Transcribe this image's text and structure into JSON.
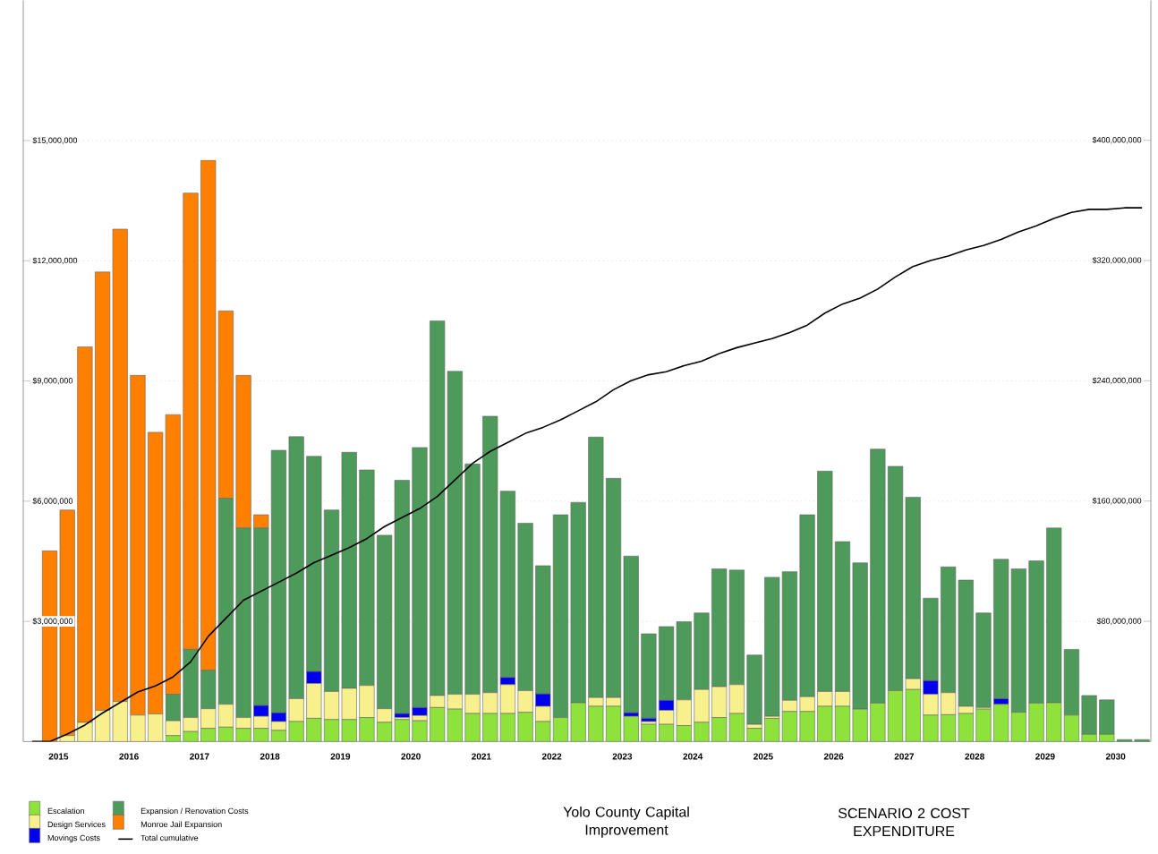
{
  "chart_data": {
    "type": "bar",
    "stacked": true,
    "title": "Yolo County Capital Improvement",
    "subtitle": "SCENARIO 2 COST EXPENDITURE",
    "x": [
      2015.125,
      2015.375,
      2015.625,
      2015.875,
      2016.125,
      2016.375,
      2016.625,
      2016.875,
      2017.125,
      2017.375,
      2017.625,
      2017.875,
      2018.125,
      2018.375,
      2018.625,
      2018.875,
      2019.125,
      2019.375,
      2019.625,
      2019.875,
      2020.125,
      2020.375,
      2020.625,
      2020.875,
      2021.125,
      2021.375,
      2021.625,
      2021.875,
      2022.125,
      2022.375,
      2022.625,
      2022.875,
      2023.125,
      2023.375,
      2023.625,
      2023.875,
      2024.125,
      2024.375,
      2024.625,
      2024.875,
      2025.125,
      2025.375,
      2025.625,
      2025.875,
      2026.125,
      2026.375,
      2026.625,
      2026.875,
      2027.125,
      2027.375,
      2027.625,
      2027.875,
      2028.125,
      2028.375,
      2028.625,
      2028.875,
      2029.125,
      2029.375,
      2029.625,
      2029.875,
      2030.125,
      2030.375,
      2030.625,
      2030.875
    ],
    "series": [
      {
        "name": "Escalation",
        "color": "#8fe13b",
        "values": [
          0,
          0,
          0,
          0,
          0,
          0,
          0,
          0,
          150000.0,
          250000.0,
          330000.0,
          360000.0,
          330000.0,
          330000.0,
          280000.0,
          500000.0,
          580000.0,
          550000.0,
          550000.0,
          600000.0,
          480000.0,
          550000.0,
          520000.0,
          850000.0,
          810000.0,
          700000.0,
          700000.0,
          700000.0,
          730000.0,
          500000.0,
          600000.0,
          970000.0,
          880000.0,
          880000.0,
          630000.0,
          430000.0,
          430000.0,
          400000.0,
          480000.0,
          600000.0,
          700000.0,
          330000.0,
          580000.0,
          750000.0,
          750000.0,
          880000.0,
          880000.0,
          810000.0,
          960000.0,
          1270000.0,
          1300000.0,
          660000.0,
          670000.0,
          700000.0,
          810000.0,
          930000.0,
          730000.0,
          960000.0,
          970000.0,
          660000.0,
          180000.0,
          180000.0,
          0,
          0
        ]
      },
      {
        "name": "Design Services",
        "color": "#f8f08c",
        "values": [
          0,
          0,
          150000.0,
          480000.0,
          780000.0,
          1000000.0,
          660000.0,
          690000.0,
          370000.0,
          350000.0,
          490000.0,
          570000.0,
          270000.0,
          300000.0,
          220000.0,
          570000.0,
          870000.0,
          700000.0,
          780000.0,
          800000.0,
          340000.0,
          50000.0,
          130000.0,
          300000.0,
          370000.0,
          480000.0,
          520000.0,
          720000.0,
          540000.0,
          380000.0,
          0,
          0,
          220000.0,
          220000.0,
          0,
          70000.0,
          350000.0,
          640000.0,
          820000.0,
          770000.0,
          720000.0,
          100000.0,
          50000.0,
          280000.0,
          370000.0,
          370000.0,
          370000.0,
          0,
          0,
          0,
          270000.0,
          520000.0,
          550000.0,
          180000.0,
          40000.0,
          0,
          0,
          0,
          0,
          0,
          0,
          0,
          0,
          0
        ]
      },
      {
        "name": "Movings Costs",
        "color": "#0000ee",
        "values": [
          0,
          0,
          0,
          0,
          0,
          0,
          0,
          0,
          0,
          0,
          0,
          0,
          0,
          270000.0,
          220000.0,
          0,
          300000.0,
          0,
          0,
          0,
          0,
          100000.0,
          200000.0,
          0,
          0,
          0,
          0,
          180000.0,
          0,
          310000.0,
          0,
          0,
          0,
          0,
          90000.0,
          80000.0,
          250000.0,
          0,
          0,
          0,
          0,
          0,
          0,
          0,
          0,
          0,
          0,
          0,
          0,
          0,
          0,
          340000.0,
          0,
          0,
          0,
          140000.0,
          0,
          0,
          0,
          0,
          0,
          0,
          0,
          0
        ]
      },
      {
        "name": "Expansion / Renovation Costs",
        "color": "#4e9a5a",
        "values": [
          0,
          0,
          0,
          0,
          0,
          0,
          0,
          0,
          660000.0,
          1700000.0,
          960000.0,
          5140000.0,
          4730000.0,
          4430000.0,
          6550000.0,
          6540000.0,
          5370000.0,
          4530000.0,
          5890000.0,
          5380000.0,
          4330000.0,
          5820000.0,
          6490000.0,
          9350000.0,
          8060000.0,
          5750000.0,
          6900000.0,
          4650000.0,
          4180000.0,
          3200000.0,
          5060000.0,
          5000000.0,
          6500000.0,
          5470000.0,
          3910000.0,
          2110000.0,
          1840000.0,
          1950000.0,
          1910000.0,
          2940000.0,
          2860000.0,
          1730000.0,
          3470000.0,
          3210000.0,
          4540000.0,
          5500000.0,
          3740000.0,
          3650000.0,
          6340000.0,
          5600000.0,
          4530000.0,
          2060000.0,
          3140000.0,
          3150000.0,
          2360000.0,
          3480000.0,
          3580000.0,
          3550000.0,
          4360000.0,
          1640000.0,
          970000.0,
          860000.0,
          50000.0,
          50000.0
        ]
      },
      {
        "name": "Monroe Jail Expansion",
        "color": "#ff7f00",
        "values": [
          0,
          4760000.0,
          5630000.0,
          9370000.0,
          10940000.0,
          11790000.0,
          8480000.0,
          7030000.0,
          6980000.0,
          11390000.0,
          12730000.0,
          4680000.0,
          3810000.0,
          330000.0,
          0,
          0,
          0,
          0,
          0,
          0,
          0,
          0,
          0,
          0,
          0,
          0,
          0,
          0,
          0,
          0,
          0,
          0,
          0,
          0,
          0,
          0,
          0,
          0,
          0,
          0,
          0,
          0,
          0,
          0,
          0,
          0,
          0,
          0,
          0,
          0,
          0,
          0,
          0,
          0,
          0,
          0,
          0,
          0,
          0,
          0,
          0,
          0,
          0,
          0
        ]
      },
      {
        "name": "Total cumulative",
        "type": "line",
        "axis": "y2",
        "color": "#000000",
        "values": [
          0,
          0,
          5000000.0,
          11000000.0,
          19000000.0,
          26000000.0,
          33000000.0,
          37000000.0,
          43000000.0,
          53000000.0,
          70000000.0,
          82000000.0,
          94000000.0,
          100000000.0,
          106000000.0,
          112000000.0,
          119000000.0,
          124000000.0,
          129000000.0,
          135000000.0,
          143000000.0,
          149000000.0,
          155000000.0,
          163000000.0,
          174000000.0,
          185000000.0,
          193000000.0,
          199000000.0,
          205000000.0,
          209000000.0,
          214000000.0,
          220000000.0,
          226000000.0,
          234000000.0,
          240000000.0,
          244000000.0,
          246000000.0,
          250000000.0,
          253000000.0,
          258000000.0,
          262000000.0,
          265000000.0,
          268000000.0,
          272000000.0,
          277000000.0,
          285000000.0,
          291000000.0,
          295000000.0,
          301000000.0,
          309000000.0,
          316000000.0,
          320000000.0,
          323000000.0,
          327000000.0,
          330000000.0,
          334000000.0,
          339000000.0,
          343000000.0,
          348000000.0,
          352000000.0,
          354000000.0,
          354000000.0,
          355000000.0,
          355000000.0
        ]
      }
    ],
    "xlim": [
      2015,
      2031
    ],
    "xticks": [
      {
        "value": 2015.5,
        "label": "2015"
      },
      {
        "value": 2016.5,
        "label": "2016"
      },
      {
        "value": 2017.5,
        "label": "2017"
      },
      {
        "value": 2018.5,
        "label": "2018"
      },
      {
        "value": 2019.5,
        "label": "2019"
      },
      {
        "value": 2020.5,
        "label": "2020"
      },
      {
        "value": 2021.5,
        "label": "2021"
      },
      {
        "value": 2022.5,
        "label": "2022"
      },
      {
        "value": 2023.5,
        "label": "2023"
      },
      {
        "value": 2024.5,
        "label": "2024"
      },
      {
        "value": 2025.5,
        "label": "2025"
      },
      {
        "value": 2026.5,
        "label": "2026"
      },
      {
        "value": 2027.5,
        "label": "2027"
      },
      {
        "value": 2028.5,
        "label": "2028"
      },
      {
        "value": 2029.5,
        "label": "2029"
      },
      {
        "value": 2030.5,
        "label": "2030"
      }
    ],
    "ylim": [
      0,
      18500000
    ],
    "yticks": [
      {
        "value": 3000000,
        "label": "$3,000,000"
      },
      {
        "value": 6000000,
        "label": "$6,000,000"
      },
      {
        "value": 9000000,
        "label": "$9,000,000"
      },
      {
        "value": 12000000,
        "label": "$12,000,000"
      },
      {
        "value": 15000000,
        "label": "$15,000,000"
      }
    ],
    "y2lim": [
      0,
      493000000
    ],
    "y2ticks": [
      {
        "value": 80000000,
        "label": "$80,000,000"
      },
      {
        "value": 160000000,
        "label": "$160,000,000"
      },
      {
        "value": 240000000,
        "label": "$240,000,000"
      },
      {
        "value": 320000000,
        "label": "$320,000,000"
      },
      {
        "value": 400000000,
        "label": "$400,000,000"
      }
    ],
    "grid": "y",
    "legend": "bottom left"
  }
}
